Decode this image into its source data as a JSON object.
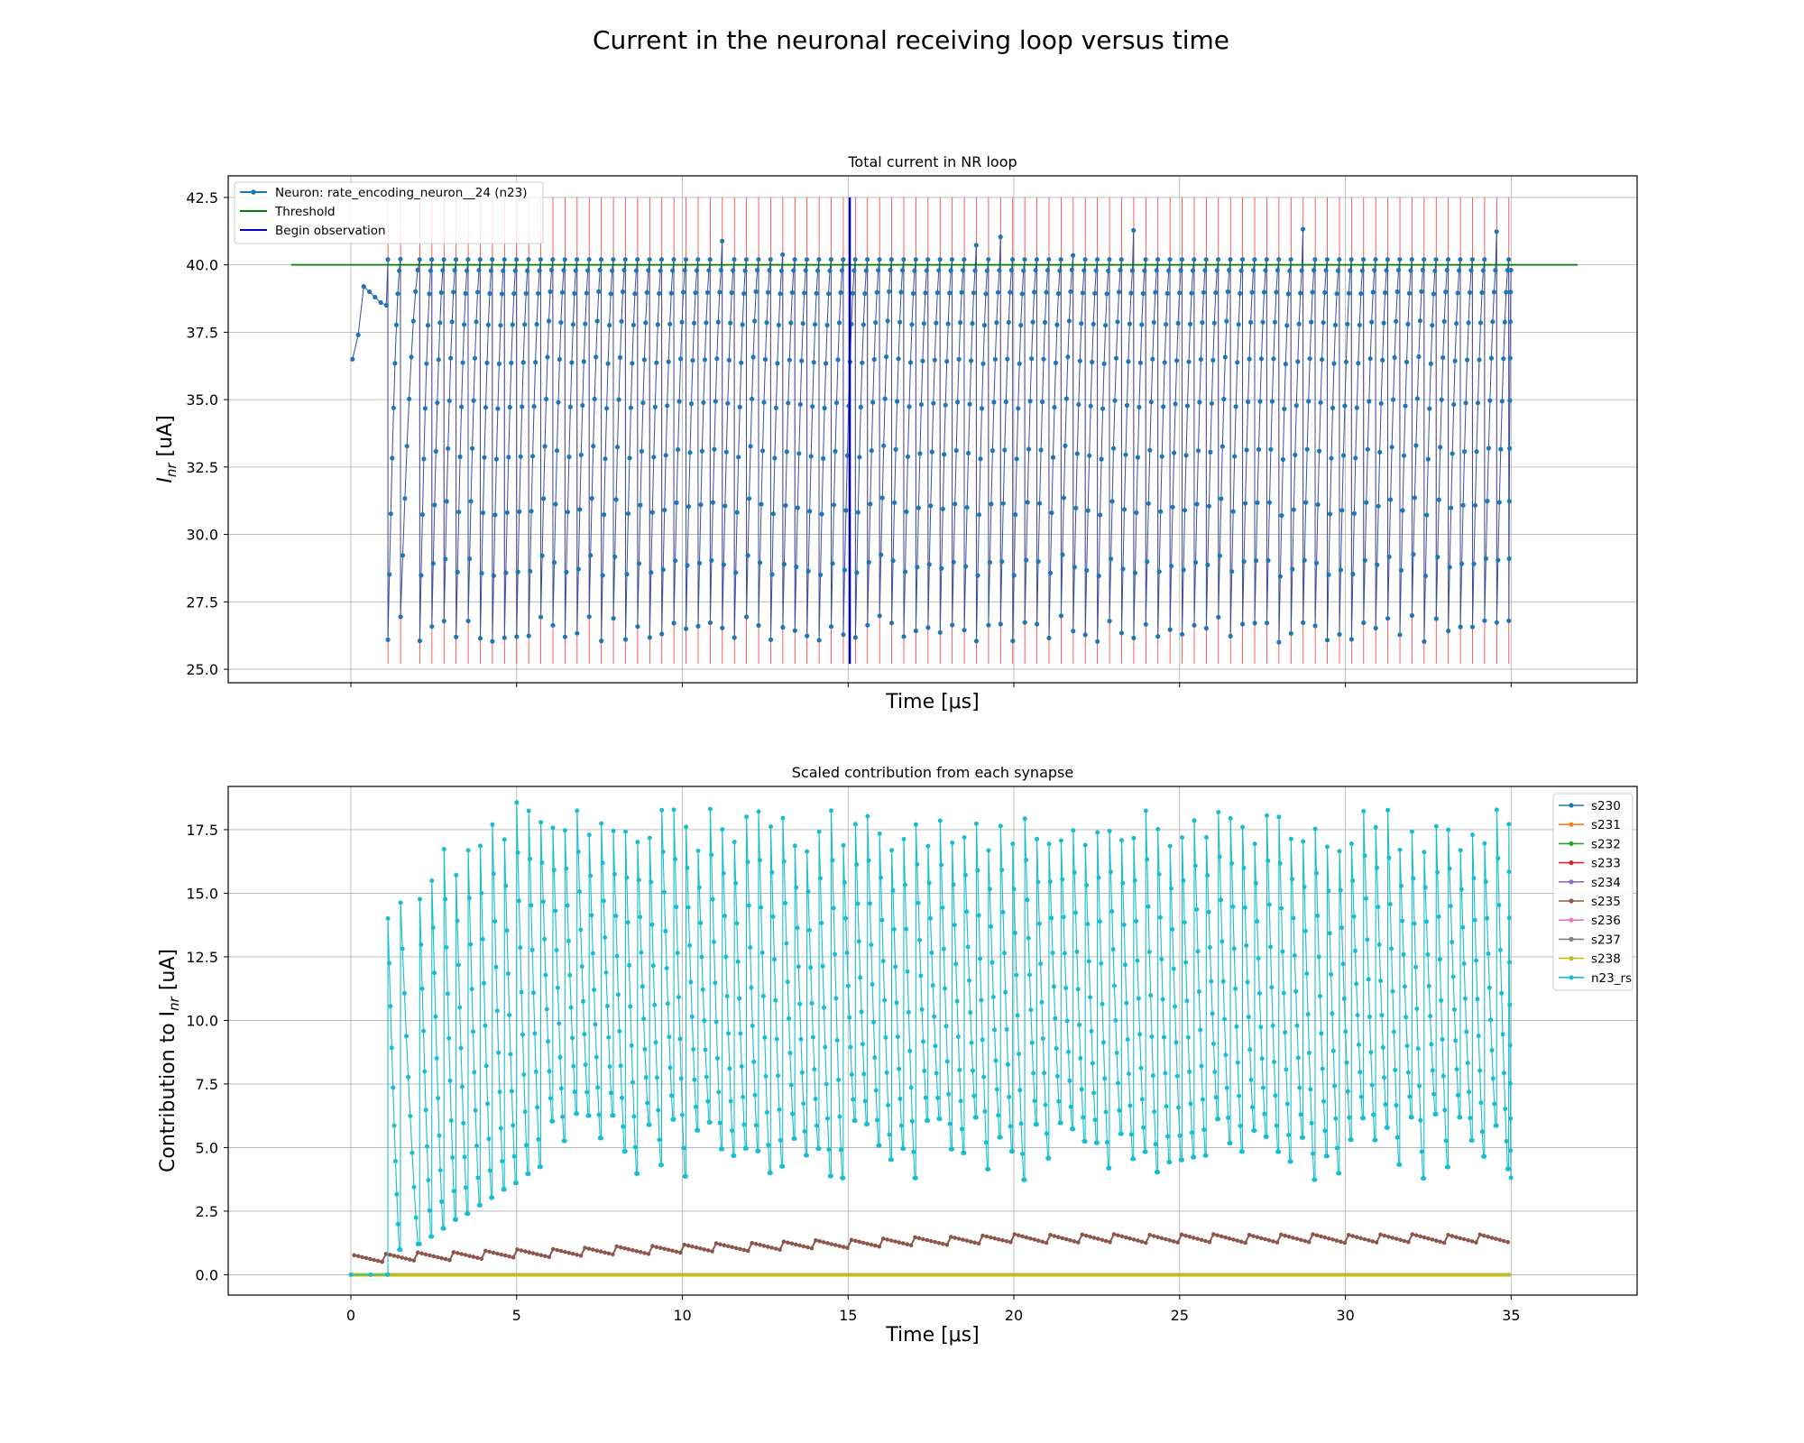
{
  "figure": {
    "suptitle": "Current in the neuronal receiving loop versus time"
  },
  "chart_data": [
    {
      "type": "line",
      "title": "Total current in NR loop",
      "xlabel": "Time [μs]",
      "ylabel_base": "I",
      "ylabel_sub": "nr",
      "ylabel_unit": " [uA]",
      "xlim": [
        -3.7,
        38.8
      ],
      "ylim": [
        24.5,
        43.3
      ],
      "xticks": [
        0,
        5,
        10,
        15,
        20,
        25,
        30,
        35
      ],
      "show_xtick_labels": false,
      "yticks": [
        25.0,
        27.5,
        30.0,
        32.5,
        35.0,
        37.5,
        40.0,
        42.5
      ],
      "ytick_labels": [
        "25.0",
        "27.5",
        "30.0",
        "32.5",
        "35.0",
        "37.5",
        "40.0",
        "42.5"
      ],
      "grid": true,
      "legend_position": "upper-left",
      "series": [
        {
          "name": "Neuron: rate_encoding_neuron__24 (n23)",
          "color": "#1f77b4",
          "kind": "line-markers"
        },
        {
          "name": "Threshold",
          "color": "#008000",
          "kind": "line",
          "y": 40.0,
          "x_range": [
            -1.8,
            37.0
          ]
        },
        {
          "name": "Begin observation",
          "color": "#0000bb",
          "kind": "line",
          "x": 15.05
        }
      ],
      "spike_lines": {
        "color": "#ff0000",
        "y_range": [
          25.2,
          42.5
        ],
        "first": 1.12,
        "second": 1.5,
        "start": 2.08,
        "period": 0.365,
        "end": 35.0
      },
      "trace": {
        "initial_values": [
          36.5,
          37.4,
          39.2,
          39.0,
          38.8,
          38.6,
          38.5
        ],
        "spike_peak": 40.2,
        "reset_min_range": [
          26.0,
          27.0
        ],
        "end_x": 35.0
      }
    },
    {
      "type": "line",
      "title": "Scaled contribution from each synapse",
      "xlabel": "Time [μs]",
      "ylabel_base": "Contribution to I",
      "ylabel_sub": "nr",
      "ylabel_unit": " [uA]",
      "xlim": [
        -3.7,
        38.8
      ],
      "ylim": [
        -0.8,
        19.2
      ],
      "xticks": [
        0,
        5,
        10,
        15,
        20,
        25,
        30,
        35
      ],
      "xtick_labels": [
        "0",
        "5",
        "10",
        "15",
        "20",
        "25",
        "30",
        "35"
      ],
      "yticks": [
        0.0,
        2.5,
        5.0,
        7.5,
        10.0,
        12.5,
        15.0,
        17.5
      ],
      "ytick_labels": [
        "0.0",
        "2.5",
        "5.0",
        "7.5",
        "10.0",
        "12.5",
        "15.0",
        "17.5"
      ],
      "grid": true,
      "legend_position": "upper-right",
      "series": [
        {
          "name": "s230",
          "color": "#1f77b4"
        },
        {
          "name": "s231",
          "color": "#ff7f0e"
        },
        {
          "name": "s232",
          "color": "#2ca02c"
        },
        {
          "name": "s233",
          "color": "#d62728"
        },
        {
          "name": "s234",
          "color": "#9467bd"
        },
        {
          "name": "s235",
          "color": "#8c564b"
        },
        {
          "name": "s236",
          "color": "#e377c2"
        },
        {
          "name": "s237",
          "color": "#7f7f7f"
        },
        {
          "name": "s238",
          "color": "#bcbd22"
        },
        {
          "name": "n23_rs",
          "color": "#17becf"
        }
      ],
      "trace": {
        "n23_rs_peak_range": [
          14.0,
          18.4
        ],
        "n23_rs_min_range": [
          3.0,
          5.8
        ],
        "synapse_sawtooth_range": [
          0.7,
          1.5
        ],
        "end_x": 35.0
      }
    }
  ]
}
